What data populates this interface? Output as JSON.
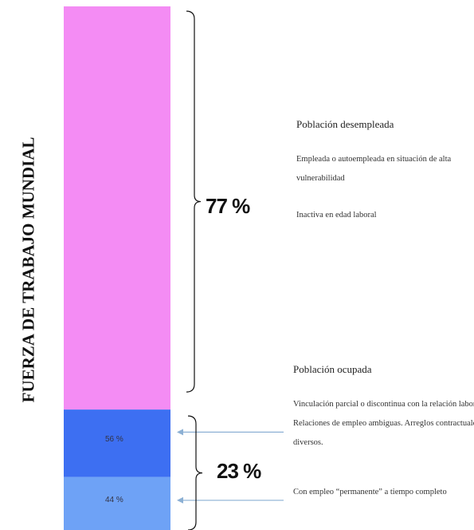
{
  "chart_data": {
    "type": "stacked_bar",
    "ylabel": "FUERZA DE TRABAJO MUNDIAL",
    "groups": [
      {
        "value": 77,
        "value_label": "77 %",
        "color": "#f48cf4",
        "heading": "Población desempleada",
        "notes": [
          "Empleada o autoempleada en situación de alta vulnerabilidad",
          "Inactiva en edad laboral"
        ]
      },
      {
        "value": 23,
        "value_label": "23 %",
        "heading": "Población ocupada",
        "segments": [
          {
            "value": 56,
            "value_label": "56 %",
            "color": "#3d6ff2",
            "note": "Vinculación parcial o discontinua con la relación laboral. Relaciones de empleo ambiguas. Arreglos contractuales diversos."
          },
          {
            "value": 44,
            "value_label": "44 %",
            "color": "#6ea2f6",
            "note": "Con empleo “permanente” a tiempo completo"
          }
        ]
      }
    ]
  }
}
